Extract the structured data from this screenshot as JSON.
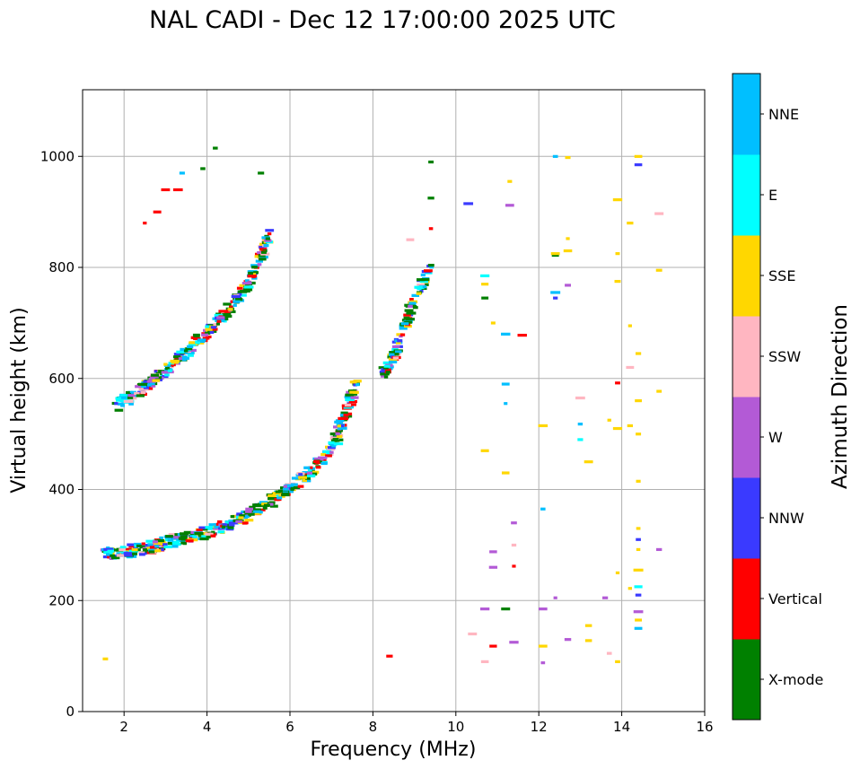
{
  "chart_data": {
    "type": "scatter",
    "title": "NAL CADI - Dec 12 17:00:00 2025 UTC",
    "xlabel": "Frequency (MHz)",
    "ylabel": "Virtual height (km)",
    "xlim": [
      1,
      16
    ],
    "ylim": [
      0,
      1120
    ],
    "xticks": [
      2,
      4,
      6,
      8,
      10,
      12,
      14,
      16
    ],
    "yticks": [
      0,
      200,
      400,
      600,
      800,
      1000
    ],
    "grid": true,
    "colorbar": {
      "title": "Azimuth Direction",
      "categories": [
        {
          "label": "X-mode",
          "color": "#008000"
        },
        {
          "label": "Vertical",
          "color": "#ff0000"
        },
        {
          "label": "NNW",
          "color": "#3a3aff"
        },
        {
          "label": "W",
          "color": "#b35ad6"
        },
        {
          "label": "SSW",
          "color": "#ffb6c1"
        },
        {
          "label": "SSE",
          "color": "#ffd700"
        },
        {
          "label": "E",
          "color": "#00ffff"
        },
        {
          "label": "NNE",
          "color": "#00bfff"
        }
      ]
    },
    "traces": [
      {
        "name": "lower F-layer trace",
        "points": [
          [
            1.5,
            285
          ],
          [
            1.8,
            285
          ],
          [
            2.2,
            290
          ],
          [
            2.6,
            295
          ],
          [
            3.0,
            305
          ],
          [
            3.4,
            312
          ],
          [
            3.8,
            320
          ],
          [
            4.2,
            328
          ],
          [
            4.6,
            340
          ],
          [
            5.0,
            352
          ],
          [
            5.4,
            370
          ],
          [
            5.8,
            392
          ],
          [
            6.2,
            415
          ],
          [
            6.6,
            440
          ],
          [
            7.0,
            470
          ],
          [
            7.2,
            510
          ],
          [
            7.4,
            550
          ],
          [
            7.6,
            590
          ]
        ],
        "width": 22
      },
      {
        "name": "upper F-layer trace",
        "points": [
          [
            1.8,
            550
          ],
          [
            2.2,
            568
          ],
          [
            2.6,
            590
          ],
          [
            3.0,
            615
          ],
          [
            3.4,
            640
          ],
          [
            3.8,
            670
          ],
          [
            4.2,
            700
          ],
          [
            4.6,
            730
          ],
          [
            5.0,
            770
          ],
          [
            5.3,
            820
          ],
          [
            5.5,
            860
          ]
        ],
        "width": 20
      },
      {
        "name": "high trace",
        "points": [
          [
            8.2,
            600
          ],
          [
            8.5,
            640
          ],
          [
            8.8,
            700
          ],
          [
            9.1,
            760
          ],
          [
            9.4,
            800
          ]
        ],
        "width": 22
      }
    ],
    "sparse_points": [
      [
        1.55,
        95,
        "SSE"
      ],
      [
        2.5,
        880,
        "Vertical"
      ],
      [
        2.8,
        900,
        "Vertical"
      ],
      [
        3.0,
        940,
        "Vertical"
      ],
      [
        3.3,
        940,
        "Vertical"
      ],
      [
        3.4,
        970,
        "NNE"
      ],
      [
        3.9,
        978,
        "X-mode"
      ],
      [
        4.2,
        1015,
        "X-mode"
      ],
      [
        5.3,
        970,
        "X-mode"
      ],
      [
        8.4,
        100,
        "Vertical"
      ],
      [
        9.4,
        990,
        "X-mode"
      ],
      [
        9.4,
        925,
        "X-mode"
      ],
      [
        9.4,
        870,
        "Vertical"
      ],
      [
        10.3,
        915,
        "NNW"
      ],
      [
        11.3,
        955,
        "SSE"
      ],
      [
        11.3,
        912,
        "W"
      ],
      [
        10.4,
        140,
        "SSW"
      ],
      [
        10.7,
        185,
        "W"
      ],
      [
        10.7,
        90,
        "SSW"
      ],
      [
        10.9,
        118,
        "Vertical"
      ],
      [
        10.9,
        260,
        "W"
      ],
      [
        10.9,
        288,
        "W"
      ],
      [
        11.2,
        185,
        "X-mode"
      ],
      [
        11.4,
        125,
        "W"
      ],
      [
        11.4,
        262,
        "Vertical"
      ],
      [
        11.4,
        300,
        "SSW"
      ],
      [
        11.4,
        340,
        "W"
      ],
      [
        10.7,
        470,
        "SSE"
      ],
      [
        11.2,
        430,
        "SSE"
      ],
      [
        11.2,
        555,
        "NNE"
      ],
      [
        11.2,
        590,
        "NNE"
      ],
      [
        10.7,
        745,
        "X-mode"
      ],
      [
        10.7,
        770,
        "SSE"
      ],
      [
        10.7,
        785,
        "E"
      ],
      [
        10.9,
        700,
        "SSE"
      ],
      [
        11.2,
        680,
        "NNE"
      ],
      [
        11.6,
        678,
        "Vertical"
      ],
      [
        12.1,
        88,
        "W"
      ],
      [
        12.1,
        118,
        "SSE"
      ],
      [
        12.1,
        185,
        "W"
      ],
      [
        12.1,
        365,
        "NNE"
      ],
      [
        12.1,
        515,
        "SSE"
      ],
      [
        12.4,
        205,
        "W"
      ],
      [
        12.4,
        745,
        "NNW"
      ],
      [
        12.4,
        755,
        "NNE"
      ],
      [
        12.4,
        822,
        "X-mode"
      ],
      [
        12.4,
        825,
        "SSE"
      ],
      [
        12.4,
        1000,
        "NNE"
      ],
      [
        12.7,
        130,
        "W"
      ],
      [
        12.7,
        768,
        "W"
      ],
      [
        12.7,
        830,
        "SSE"
      ],
      [
        12.7,
        852,
        "SSE"
      ],
      [
        12.7,
        998,
        "SSE"
      ],
      [
        13.0,
        490,
        "E"
      ],
      [
        13.0,
        518,
        "NNE"
      ],
      [
        13.0,
        565,
        "SSW"
      ],
      [
        13.2,
        128,
        "SSE"
      ],
      [
        13.2,
        155,
        "SSE"
      ],
      [
        13.2,
        450,
        "SSE"
      ],
      [
        13.6,
        205,
        "W"
      ],
      [
        13.7,
        105,
        "SSW"
      ],
      [
        13.7,
        525,
        "SSE"
      ],
      [
        13.9,
        90,
        "SSE"
      ],
      [
        13.9,
        250,
        "SSE"
      ],
      [
        13.9,
        510,
        "SSE"
      ],
      [
        13.9,
        592,
        "Vertical"
      ],
      [
        13.9,
        775,
        "SSE"
      ],
      [
        13.9,
        825,
        "SSE"
      ],
      [
        13.9,
        922,
        "SSE"
      ],
      [
        14.2,
        222,
        "SSE"
      ],
      [
        14.2,
        515,
        "SSE"
      ],
      [
        14.2,
        620,
        "SSW"
      ],
      [
        14.2,
        695,
        "SSE"
      ],
      [
        14.2,
        880,
        "SSE"
      ],
      [
        14.4,
        150,
        "NNE"
      ],
      [
        14.4,
        165,
        "SSE"
      ],
      [
        14.4,
        180,
        "W"
      ],
      [
        14.4,
        210,
        "NNW"
      ],
      [
        14.4,
        225,
        "E"
      ],
      [
        14.4,
        255,
        "SSE"
      ],
      [
        14.4,
        292,
        "SSE"
      ],
      [
        14.4,
        310,
        "NNW"
      ],
      [
        14.4,
        330,
        "SSE"
      ],
      [
        14.4,
        415,
        "SSE"
      ],
      [
        14.4,
        500,
        "SSE"
      ],
      [
        14.4,
        560,
        "SSE"
      ],
      [
        14.4,
        645,
        "SSE"
      ],
      [
        14.4,
        985,
        "NNW"
      ],
      [
        14.4,
        1000,
        "SSE"
      ],
      [
        14.9,
        292,
        "W"
      ],
      [
        14.9,
        577,
        "SSE"
      ],
      [
        14.9,
        795,
        "SSE"
      ],
      [
        14.9,
        897,
        "SSW"
      ],
      [
        8.9,
        850,
        "SSW"
      ],
      [
        8.9,
        730,
        "W"
      ]
    ]
  }
}
